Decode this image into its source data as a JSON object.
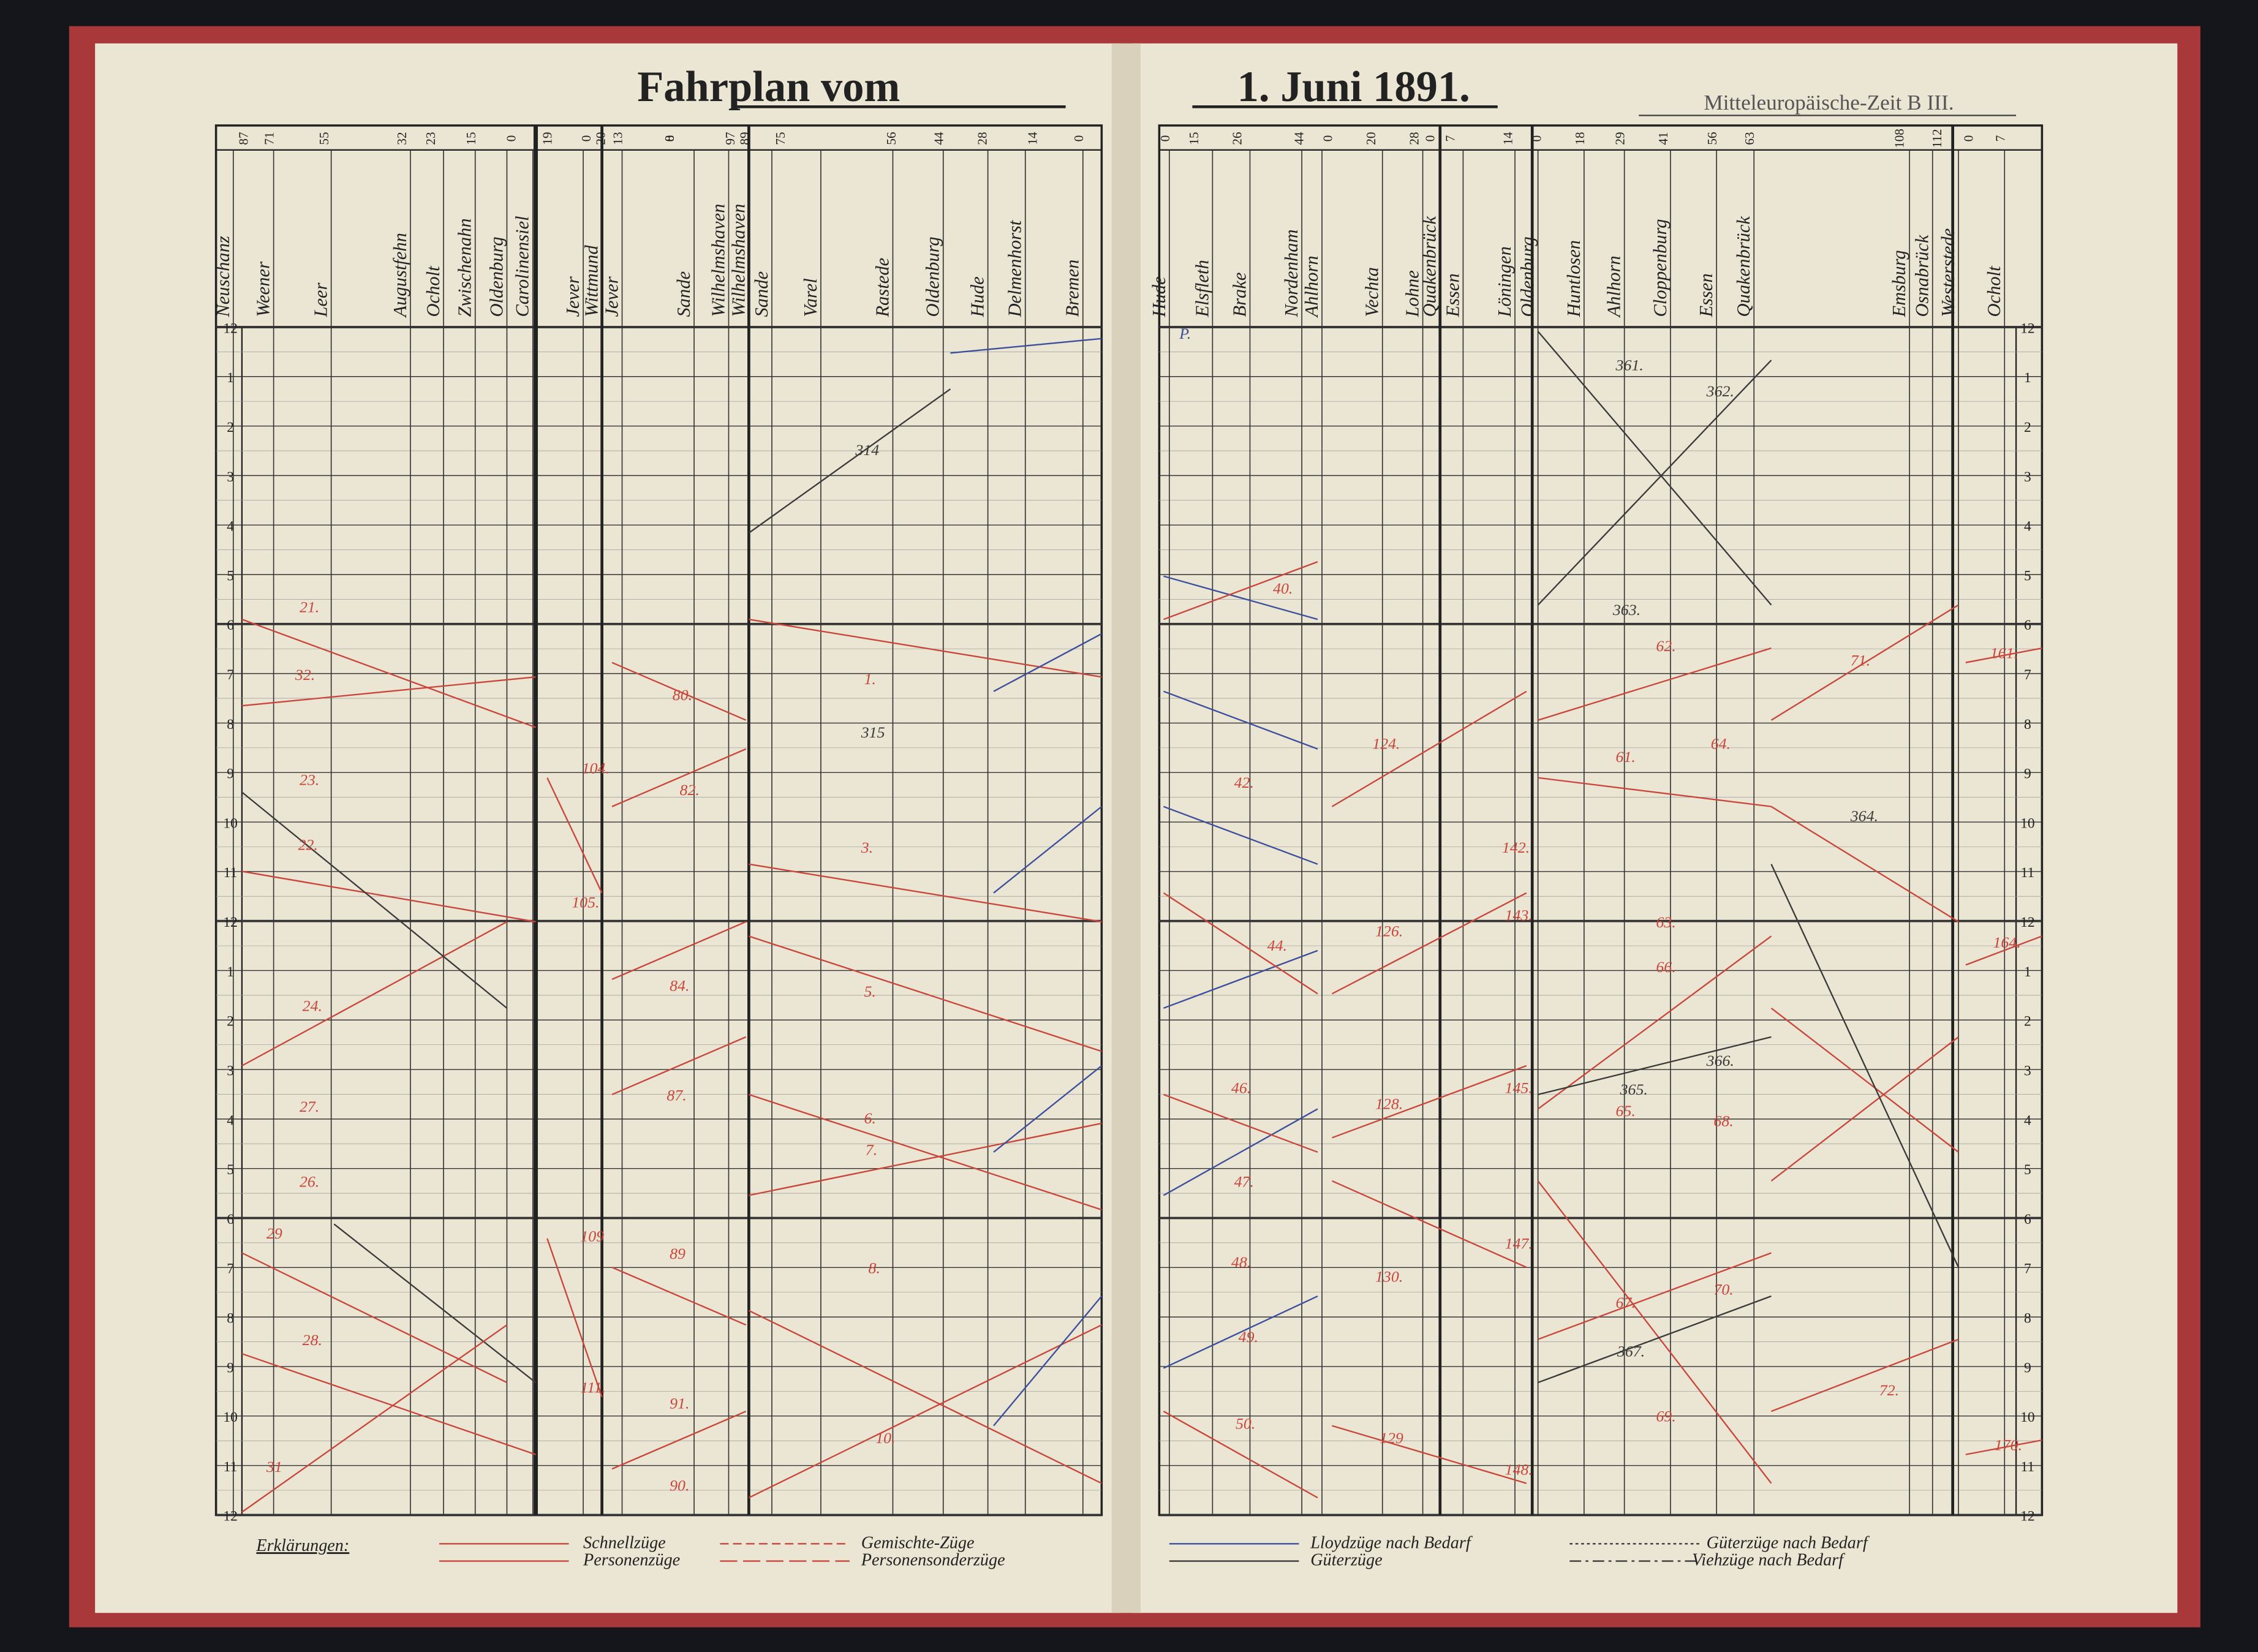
{
  "header": {
    "title_left": "Fahrplan vom",
    "title_right": "1. Juni 1891.",
    "subtitle": "Mitteleuropäische-Zeit B III."
  },
  "left_page": {
    "stations": [
      "Neuschanz",
      "Weener",
      "Leer",
      "Augustfehn",
      "Ocholt",
      "Zwischenahn",
      "Oldenburg",
      "Carolinensiel",
      "Jever",
      "Wittmund",
      "Jever",
      "Sande",
      "Wilhelmshaven",
      "Wilhelmshaven",
      "Sande",
      "Varel",
      "Rastede",
      "Oldenburg",
      "Hude",
      "Delmenhorst",
      "Bremen"
    ],
    "km": [
      "87",
      "71",
      "55",
      "32",
      "23",
      "15",
      "0",
      "19",
      "0",
      "20",
      "13",
      "0",
      "8",
      "97",
      "89",
      "75",
      "56",
      "44",
      "28",
      "14",
      "0"
    ],
    "hours": [
      "12",
      "1",
      "2",
      "3",
      "4",
      "5",
      "6",
      "7",
      "8",
      "9",
      "10",
      "11",
      "12",
      "1",
      "2",
      "3",
      "4",
      "5",
      "6",
      "7",
      "8",
      "9",
      "10",
      "11",
      "12"
    ],
    "trains": [
      "21.",
      "32.",
      "23.",
      "22.",
      "24.",
      "27.",
      "26.",
      "28.",
      "29",
      "31",
      "1.",
      "3.",
      "5.",
      "6.",
      "7.",
      "8.",
      "10.",
      "80.",
      "82.",
      "84.",
      "87.",
      "89",
      "91.",
      "90.",
      "104.",
      "105.",
      "109",
      "111.",
      "314",
      "315"
    ]
  },
  "right_page": {
    "stations": [
      "Hude",
      "Elsfleth",
      "Brake",
      "Nordenham",
      "Ahlhorn",
      "Vechta",
      "Lohne",
      "Quakenbrück",
      "Essen",
      "Löningen",
      "Oldenburg",
      "Huntlosen",
      "Ahlhorn",
      "Cloppenburg",
      "Essen",
      "Quakenbrück",
      "Emsburg",
      "Osnabrück",
      "Westerstede",
      "Ocholt"
    ],
    "km": [
      "0",
      "15",
      "26",
      "44",
      "0",
      "20",
      "28",
      "0",
      "7",
      "14",
      "0",
      "18",
      "29",
      "41",
      "56",
      "63",
      "108",
      "112",
      "0",
      "7"
    ],
    "hours": [
      "12",
      "1",
      "2",
      "3",
      "4",
      "5",
      "6",
      "7",
      "8",
      "9",
      "10",
      "11",
      "12",
      "1",
      "2",
      "3",
      "4",
      "5",
      "6",
      "7",
      "8",
      "9",
      "10",
      "11",
      "12"
    ],
    "trains": [
      "P.",
      "40.",
      "42.",
      "44.",
      "46.",
      "47.",
      "48.",
      "49.",
      "50.",
      "124.",
      "126.",
      "128.",
      "129",
      "130.",
      "142.",
      "143.",
      "145.",
      "147.",
      "148.",
      "61.",
      "62.",
      "63.",
      "64.",
      "65.",
      "66.",
      "67.",
      "68.",
      "69.",
      "70.",
      "71.",
      "72.",
      "161.",
      "164.",
      "170.",
      "361.",
      "362.",
      "363.",
      "364.",
      "365.",
      "366.",
      "367."
    ]
  },
  "legend": {
    "heading": "Erklärungen:",
    "items": [
      "Schnellzüge",
      "Personenzüge",
      "Gemischte-Züge",
      "Personensonderzüge",
      "Lloydzüge nach Bedarf",
      "Güterzüge",
      "Güterzüge nach Bedarf",
      "Viehzüge nach Bedarf"
    ]
  }
}
